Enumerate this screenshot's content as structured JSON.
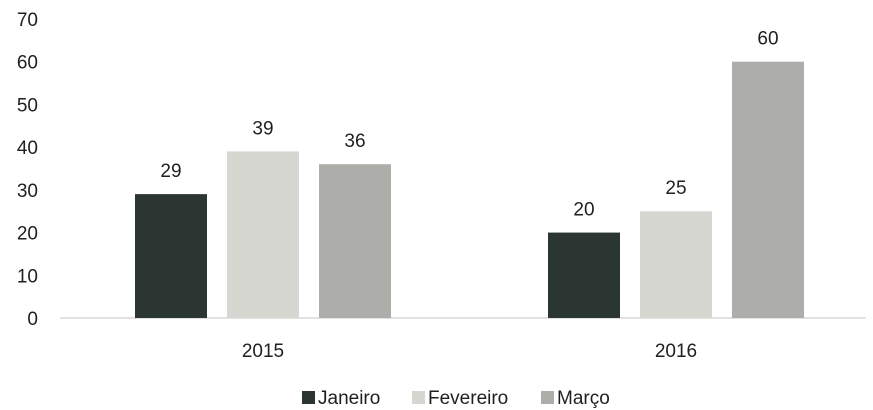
{
  "chart_data": {
    "type": "bar",
    "categories": [
      "2015",
      "2016"
    ],
    "series": [
      {
        "name": "Janeiro",
        "values": [
          29,
          20
        ],
        "color": "#2b3531"
      },
      {
        "name": "Fevereiro",
        "values": [
          39,
          25
        ],
        "color": "#d7d7d2"
      },
      {
        "name": "Março",
        "values": [
          36,
          60
        ],
        "color": "#adadaa"
      }
    ],
    "ylim": [
      0,
      70
    ],
    "yticks": [
      0,
      10,
      20,
      30,
      40,
      50,
      60,
      70
    ],
    "grid": false,
    "legend_position": "bottom"
  }
}
